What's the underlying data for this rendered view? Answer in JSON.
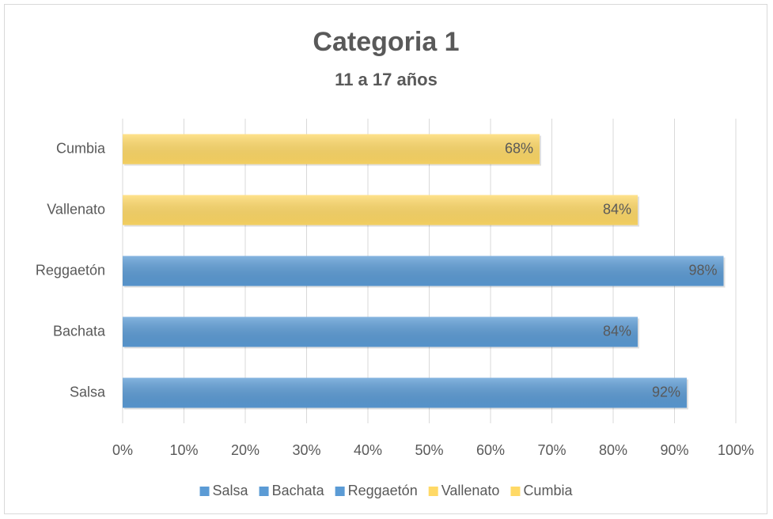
{
  "chart_data": {
    "type": "bar",
    "orientation": "horizontal",
    "title": "Categoria 1",
    "subtitle": "11 a 17 años",
    "categories": [
      "Salsa",
      "Bachata",
      "Reggaetón",
      "Vallenato",
      "Cumbia"
    ],
    "values": [
      92,
      84,
      98,
      84,
      68
    ],
    "value_labels": [
      "92%",
      "84%",
      "98%",
      "84%",
      "68%"
    ],
    "colors": [
      "#5b9bd5",
      "#5b9bd5",
      "#5b9bd5",
      "#ffd966",
      "#ffd966"
    ],
    "xlim": [
      0,
      100
    ],
    "xticks": [
      {
        "value": 0,
        "label": "0%"
      },
      {
        "value": 10,
        "label": "10%"
      },
      {
        "value": 20,
        "label": "20%"
      },
      {
        "value": 30,
        "label": "30%"
      },
      {
        "value": 40,
        "label": "40%"
      },
      {
        "value": 50,
        "label": "50%"
      },
      {
        "value": 60,
        "label": "60%"
      },
      {
        "value": 70,
        "label": "70%"
      },
      {
        "value": 80,
        "label": "80%"
      },
      {
        "value": 90,
        "label": "90%"
      },
      {
        "value": 100,
        "label": "100%"
      }
    ],
    "grid": true,
    "legend": "bottom"
  }
}
